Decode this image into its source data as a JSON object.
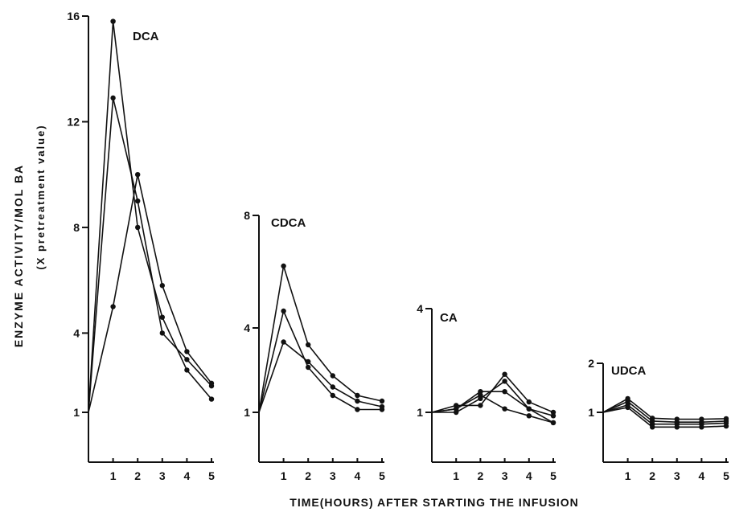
{
  "figure": {
    "ylabel": "ENZYME ACTIVITY/MOL BA",
    "ysublabel": "(X pretreatment value)",
    "xlabel": "TIME(HOURS) AFTER STARTING THE INFUSION",
    "colors": {
      "line": "#111111",
      "marker": "#111111",
      "background": "#ffffff"
    }
  },
  "chart_data": [
    {
      "type": "line",
      "title": "DCA",
      "x": [
        0,
        1,
        2,
        3,
        4,
        5
      ],
      "xticks": [
        "1",
        "2",
        "3",
        "4",
        "5"
      ],
      "ylim": [
        0,
        16
      ],
      "yticks": [
        1,
        4,
        8,
        12,
        16
      ],
      "series": [
        {
          "values": [
            1,
            15.8,
            8.0,
            4.6,
            2.6,
            1.5
          ]
        },
        {
          "values": [
            1,
            12.9,
            9.0,
            4.0,
            3.0,
            2.0
          ]
        },
        {
          "values": [
            1,
            5.0,
            10.0,
            5.8,
            3.3,
            2.1
          ]
        }
      ]
    },
    {
      "type": "line",
      "title": "CDCA",
      "x": [
        0,
        1,
        2,
        3,
        4,
        5
      ],
      "xticks": [
        "1",
        "2",
        "3",
        "4",
        "5"
      ],
      "ylim": [
        0,
        8
      ],
      "yticks": [
        1,
        4,
        8
      ],
      "series": [
        {
          "values": [
            1,
            6.2,
            3.4,
            2.3,
            1.6,
            1.4
          ]
        },
        {
          "values": [
            1,
            4.6,
            2.6,
            1.6,
            1.1,
            1.1
          ]
        },
        {
          "values": [
            1,
            3.5,
            2.8,
            1.9,
            1.4,
            1.2
          ]
        }
      ]
    },
    {
      "type": "line",
      "title": "CA",
      "x": [
        0,
        1,
        2,
        3,
        4,
        5
      ],
      "xticks": [
        "1",
        "2",
        "3",
        "4",
        "5"
      ],
      "ylim": [
        0,
        4
      ],
      "yticks": [
        1,
        4
      ],
      "series": [
        {
          "values": [
            1,
            1.2,
            1.2,
            2.1,
            1.3,
            1.0
          ]
        },
        {
          "values": [
            1,
            1.1,
            1.5,
            1.1,
            0.9,
            0.7
          ]
        },
        {
          "values": [
            1,
            1.1,
            1.6,
            1.6,
            1.1,
            0.9
          ]
        },
        {
          "values": [
            1,
            1.0,
            1.4,
            1.9,
            1.1,
            0.7
          ]
        }
      ]
    },
    {
      "type": "line",
      "title": "UDCA",
      "x": [
        0,
        1,
        2,
        3,
        4,
        5
      ],
      "xticks": [
        "1",
        "2",
        "3",
        "4",
        "5"
      ],
      "ylim": [
        0,
        2
      ],
      "yticks": [
        1,
        2
      ],
      "series": [
        {
          "values": [
            1,
            1.28,
            0.88,
            0.86,
            0.86,
            0.87
          ]
        },
        {
          "values": [
            1,
            1.22,
            0.82,
            0.8,
            0.8,
            0.82
          ]
        },
        {
          "values": [
            1,
            1.15,
            0.76,
            0.76,
            0.76,
            0.78
          ]
        },
        {
          "values": [
            1,
            1.1,
            0.7,
            0.7,
            0.7,
            0.72
          ]
        }
      ]
    }
  ]
}
